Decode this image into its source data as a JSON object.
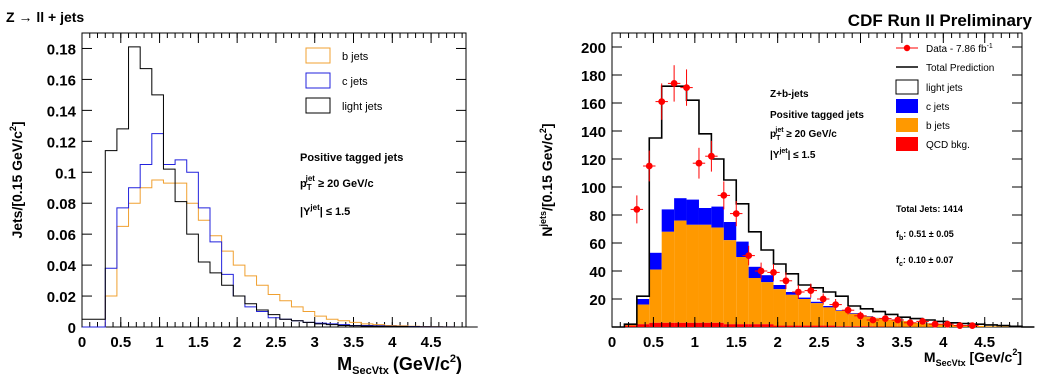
{
  "header": "CDF Run II Preliminary",
  "chart_data": [
    {
      "type": "line",
      "title": "Z → ll + jets",
      "xlabel": "M",
      "xlabel_sub": "SecVtx",
      "xlabel_unit": "(GeV/c",
      "xlabel_sup": "2",
      "xlabel_close": ")",
      "ylabel": "Jets/[0.15 GeV/c",
      "ylabel_sup": "2",
      "ylabel_close": "]",
      "xlim": [
        0,
        4.95
      ],
      "ylim": [
        0,
        0.19
      ],
      "bin_width": 0.15,
      "xticks": [
        "0",
        "0.5",
        "1",
        "1.5",
        "2",
        "2.5",
        "3",
        "3.5",
        "4",
        "4.5"
      ],
      "yticks": [
        "0",
        "0.02",
        "0.04",
        "0.06",
        "0.08",
        "0.1",
        "0.12",
        "0.14",
        "0.16",
        "0.18"
      ],
      "legend": [
        "b jets",
        "c jets",
        "light jets"
      ],
      "colors": {
        "b": "#f0a030",
        "c": "#2222dd",
        "light": "#000000"
      },
      "annotation": {
        "line1": "Positive tagged jets",
        "pt": "p",
        "pt_sub": "T",
        "pt_sup": "jet",
        "pt_rest": " ≥ 20 GeV/c",
        "eta": "|Y",
        "eta_sup": "jet",
        "eta_rest": "| ≤ 1.5"
      },
      "series": [
        {
          "name": "b jets",
          "key": "b",
          "values": [
            0,
            0,
            0.02,
            0.065,
            0.08,
            0.09,
            0.095,
            0.093,
            0.093,
            0.08,
            0.069,
            0.059,
            0.049,
            0.04,
            0.033,
            0.027,
            0.021,
            0.017,
            0.013,
            0.01,
            0.007,
            0.005,
            0.004,
            0.003,
            0.002,
            0.0015,
            0.001,
            0.0008,
            0.0005,
            0.0003,
            0.0002,
            0.0001,
            0,
            0
          ]
        },
        {
          "name": "c jets",
          "key": "c",
          "values": [
            0,
            0,
            0.038,
            0.077,
            0.09,
            0.105,
            0.125,
            0.105,
            0.108,
            0.1,
            0.077,
            0.055,
            0.034,
            0.02,
            0.013,
            0.01,
            0.006,
            0.005,
            0.004,
            0.003,
            0.0025,
            0.002,
            0.0015,
            0.001,
            0.001,
            0.0008,
            0.0005,
            0.0004,
            0.0003,
            0.0002,
            0.0001,
            0.0001,
            0,
            0
          ]
        },
        {
          "name": "light jets",
          "key": "light",
          "values": [
            0.005,
            0.005,
            0.114,
            0.128,
            0.181,
            0.167,
            0.15,
            0.102,
            0.081,
            0.06,
            0.042,
            0.035,
            0.027,
            0.02,
            0.015,
            0.011,
            0.008,
            0.005,
            0.004,
            0.003,
            0.002,
            0.0015,
            0.001,
            0.0008,
            0.0006,
            0.0005,
            0.0004,
            0.0003,
            0.0002,
            0.0001,
            0.0001,
            0,
            0,
            0
          ]
        }
      ]
    },
    {
      "type": "bar",
      "title": "",
      "xlabel": "M",
      "xlabel_sub": "SecVtx",
      "xlabel_unit": " [Gev/c",
      "xlabel_sup": "2",
      "xlabel_close": "]",
      "ylabel": "N",
      "ylabel_sup": "jets",
      "ylabel_rest": "/[0.15 Gev/c",
      "ylabel_sup2": "2",
      "ylabel_close": "]",
      "xlim": [
        0,
        4.95
      ],
      "ylim": [
        0,
        210
      ],
      "bin_width": 0.15,
      "stacked": true,
      "xticks": [
        "0",
        "0.5",
        "1",
        "1.5",
        "2",
        "2.5",
        "3",
        "3.5",
        "4",
        "4.5"
      ],
      "yticks": [
        "20",
        "40",
        "60",
        "80",
        "100",
        "120",
        "140",
        "160",
        "180",
        "200"
      ],
      "legend": {
        "data": "Data  - 7.86 fb",
        "data_sup": "-1",
        "total": "Total Prediction",
        "light": "light jets",
        "c": "c jets",
        "b": "b jets",
        "qcd": "QCD bkg."
      },
      "colors": {
        "b": "#ff9900",
        "c": "#0000ff",
        "qcd": "#ff0000",
        "data": "#ff0000",
        "total": "#000000"
      },
      "annotation": {
        "title": "Z+b-jets",
        "line1": "Positive tagged jets",
        "pt": "p",
        "pt_sub": "T",
        "pt_sup": "jet",
        "pt_rest": " ≥ 20 GeV/c",
        "eta": "|Y",
        "eta_sup": "jet",
        "eta_rest": "| ≤ 1.5"
      },
      "fit": {
        "total": "Total Jets: 1414",
        "fb": "f",
        "fb_sub": "b",
        "fb_rest": ": 0.51 ± 0.05",
        "fc": "f",
        "fc_sub": "c",
        "fc_rest": ": 0.10 ± 0.07"
      },
      "stack": {
        "qcd": [
          0,
          1,
          2,
          3,
          3,
          3,
          3,
          3,
          3,
          2,
          2,
          2,
          2,
          1,
          1,
          1,
          1,
          1,
          0.5,
          0.5,
          0.5,
          0.3,
          0.2,
          0.2,
          0.1,
          0.1,
          0,
          0,
          0,
          0,
          0,
          0,
          0,
          0
        ],
        "b": [
          0,
          1,
          14,
          38,
          65,
          73,
          70,
          70,
          68,
          60,
          48,
          33,
          30,
          26,
          22,
          19,
          16,
          13,
          11,
          9,
          7,
          6,
          5,
          4,
          3,
          2.5,
          2,
          1.5,
          1,
          0.8,
          0.5,
          0.3,
          0.2,
          0
        ],
        "c": [
          0,
          0,
          4,
          12,
          16,
          16,
          18,
          12,
          15,
          13,
          11,
          8,
          5,
          3,
          2,
          1,
          1,
          1,
          0.5,
          0.5,
          0.3,
          0.2,
          0.2,
          0.1,
          0.1,
          0.1,
          0,
          0,
          0,
          0,
          0,
          0,
          0,
          0
        ],
        "total": [
          0,
          2,
          22,
          135,
          172,
          172,
          162,
          138,
          120,
          105,
          88,
          68,
          55,
          45,
          38,
          30,
          28,
          25,
          22,
          15,
          13,
          11,
          9,
          7,
          6,
          5,
          4,
          3,
          2.5,
          2,
          1.5,
          1,
          0.5,
          0
        ]
      },
      "data_points": [
        {
          "x": 0.3,
          "y": 84,
          "err": 10
        },
        {
          "x": 0.45,
          "y": 115,
          "err": 11
        },
        {
          "x": 0.6,
          "y": 161,
          "err": 13
        },
        {
          "x": 0.75,
          "y": 174,
          "err": 13
        },
        {
          "x": 0.9,
          "y": 171,
          "err": 13
        },
        {
          "x": 1.05,
          "y": 117,
          "err": 11
        },
        {
          "x": 1.2,
          "y": 122,
          "err": 11
        },
        {
          "x": 1.35,
          "y": 94,
          "err": 10
        },
        {
          "x": 1.5,
          "y": 81,
          "err": 9
        },
        {
          "x": 1.65,
          "y": 51,
          "err": 7
        },
        {
          "x": 1.8,
          "y": 40,
          "err": 6
        },
        {
          "x": 1.95,
          "y": 39,
          "err": 6
        },
        {
          "x": 2.1,
          "y": 33,
          "err": 6
        },
        {
          "x": 2.25,
          "y": 25,
          "err": 5
        },
        {
          "x": 2.4,
          "y": 26,
          "err": 5
        },
        {
          "x": 2.55,
          "y": 20,
          "err": 4
        },
        {
          "x": 2.7,
          "y": 16,
          "err": 4
        },
        {
          "x": 2.85,
          "y": 12,
          "err": 3
        },
        {
          "x": 3.0,
          "y": 8,
          "err": 3
        },
        {
          "x": 3.15,
          "y": 5,
          "err": 2
        },
        {
          "x": 3.3,
          "y": 6,
          "err": 2
        },
        {
          "x": 3.45,
          "y": 5,
          "err": 2
        },
        {
          "x": 3.6,
          "y": 3,
          "err": 2
        },
        {
          "x": 3.75,
          "y": 4,
          "err": 2
        },
        {
          "x": 3.9,
          "y": 2,
          "err": 1
        },
        {
          "x": 4.05,
          "y": 2,
          "err": 1
        },
        {
          "x": 4.2,
          "y": 1,
          "err": 1
        },
        {
          "x": 4.35,
          "y": 1,
          "err": 1
        }
      ]
    }
  ]
}
